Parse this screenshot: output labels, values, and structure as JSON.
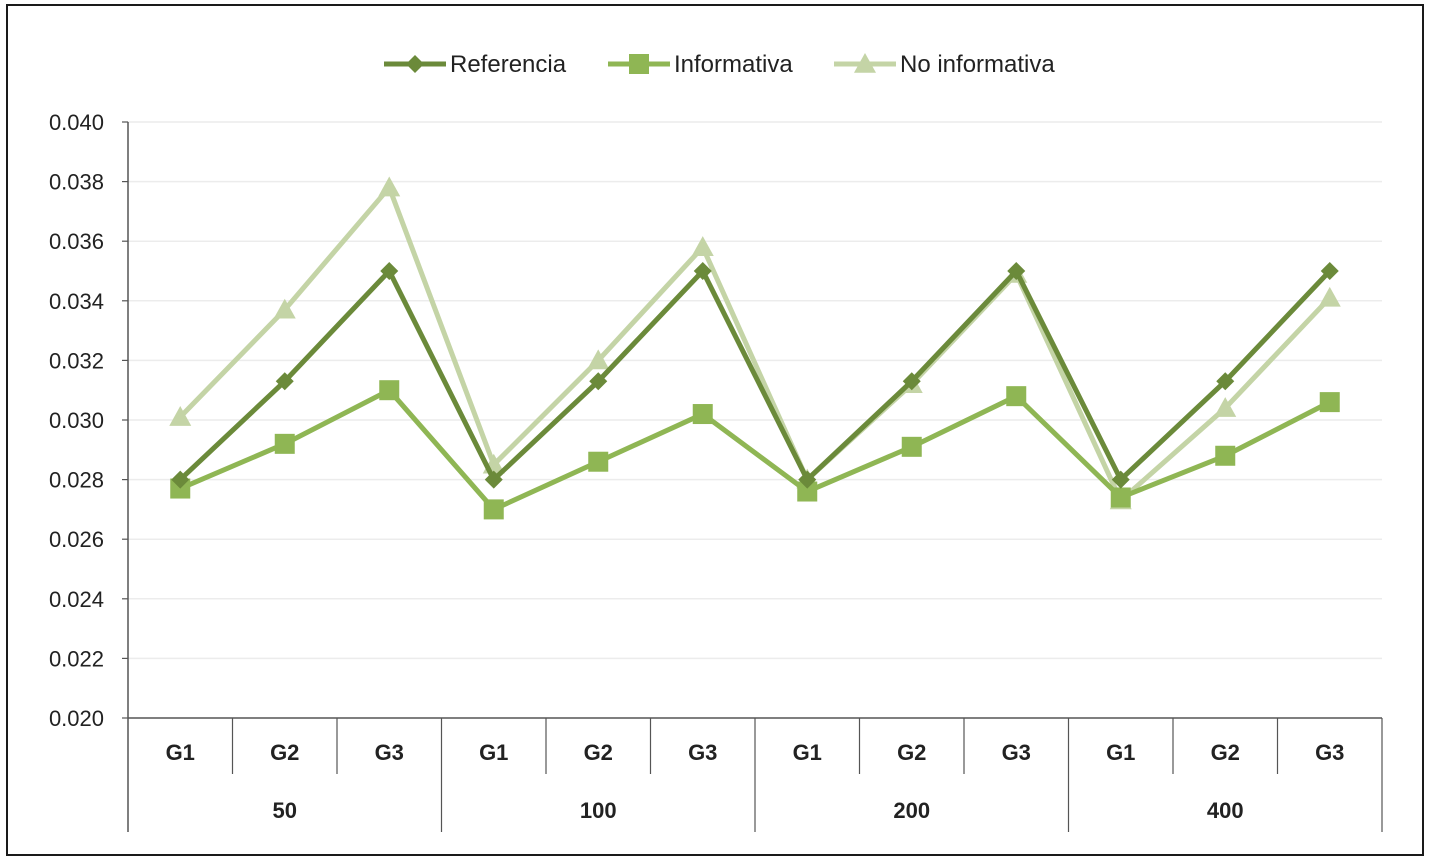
{
  "chart_data": {
    "type": "line",
    "title": "",
    "xlabel": "",
    "ylabel": "",
    "ylim": [
      0.02,
      0.04
    ],
    "yticks": [
      "0.040",
      "0.038",
      "0.036",
      "0.034",
      "0.032",
      "0.030",
      "0.028",
      "0.026",
      "0.024",
      "0.022",
      "0.020"
    ],
    "grid": true,
    "legend_position": "top-center",
    "categories": [
      "G1",
      "G2",
      "G3",
      "G1",
      "G2",
      "G3",
      "G1",
      "G2",
      "G3",
      "G1",
      "G2",
      "G3"
    ],
    "groups": [
      "50",
      "100",
      "200",
      "400"
    ],
    "series": [
      {
        "name": "Referencia",
        "marker": "diamond",
        "color": "#6b8a3a",
        "values": [
          0.028,
          0.0313,
          0.035,
          0.028,
          0.0313,
          0.035,
          0.028,
          0.0313,
          0.035,
          0.028,
          0.0313,
          0.035
        ]
      },
      {
        "name": "Informativa",
        "marker": "square",
        "color": "#8fb654",
        "values": [
          0.0277,
          0.0292,
          0.031,
          0.027,
          0.0286,
          0.0302,
          0.0276,
          0.0291,
          0.0308,
          0.0274,
          0.0288,
          0.0306
        ]
      },
      {
        "name": "No informativa",
        "marker": "triangle",
        "color": "#c4d4a6",
        "values": [
          0.0301,
          0.0337,
          0.0378,
          0.0285,
          0.032,
          0.0358,
          0.028,
          0.0312,
          0.0349,
          0.0273,
          0.0304,
          0.0341
        ]
      }
    ]
  }
}
